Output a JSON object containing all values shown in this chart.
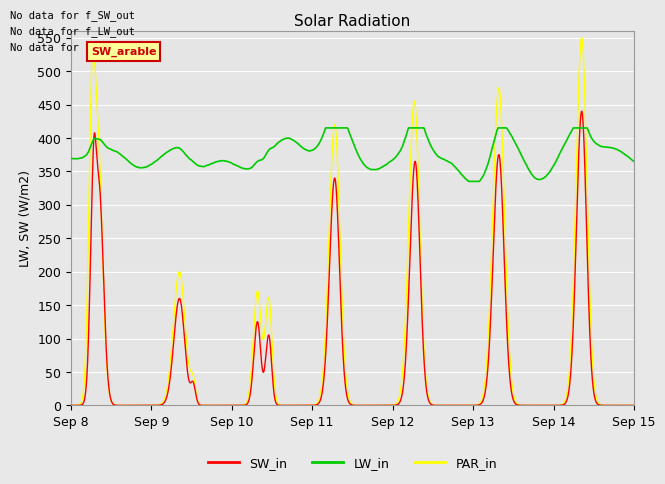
{
  "title": "Solar Radiation",
  "ylabel": "LW, SW (W/m2)",
  "ylim": [
    0,
    560
  ],
  "yticks": [
    0,
    50,
    100,
    150,
    200,
    250,
    300,
    350,
    400,
    450,
    500,
    550
  ],
  "xtick_labels": [
    "Sep 8",
    "Sep 9",
    "Sep 10",
    "Sep 11",
    "Sep 12",
    "Sep 13",
    "Sep 14",
    "Sep 15"
  ],
  "bg_color": "#e8e8e8",
  "plot_bg_color": "#e5e5e5",
  "grid_color": "white",
  "sw_color": "red",
  "lw_color": "#00cc00",
  "par_color": "yellow",
  "no_data_texts": [
    "No data for f_SW_out",
    "No data for f_LW_out",
    "No data for f_PAR_out"
  ],
  "tooltip_text": "SW_arable",
  "tooltip_bg": "#ffff99",
  "tooltip_border": "#cc0000",
  "legend_labels": [
    "SW_in",
    "LW_in",
    "PAR_in"
  ],
  "legend_colors": [
    "red",
    "#00cc00",
    "yellow"
  ]
}
